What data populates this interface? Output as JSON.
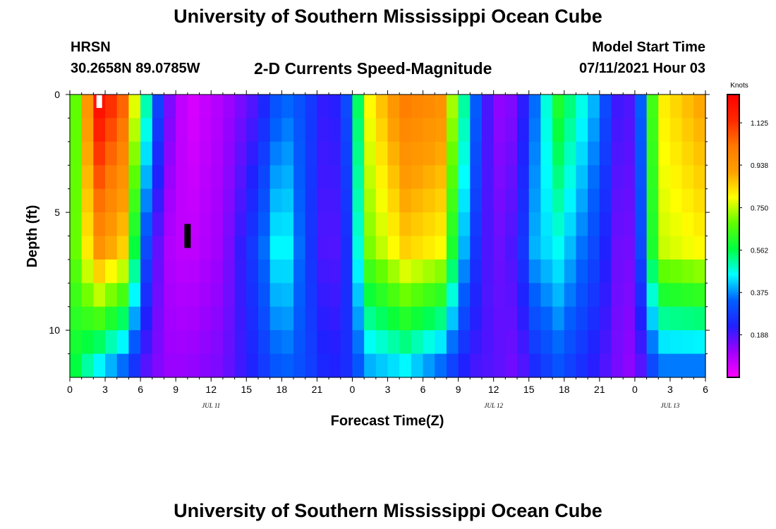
{
  "page": {
    "top_title": "University of Southern Mississippi Ocean Cube",
    "bottom_title": "University of Southern Mississippi Ocean Cube",
    "station": "HRSN",
    "coords": "30.2658N  89.0785W",
    "subtitle": "2-D Currents Speed-Magnitude",
    "model_label": "Model Start Time",
    "model_time": "07/11/2021 Hour 03"
  },
  "colors": {
    "scale": [
      "#ff00ff",
      "#a000ff",
      "#2020ff",
      "#0060ff",
      "#00ffff",
      "#00ff40",
      "#60ff00",
      "#ffff00",
      "#ffa000",
      "#ff7800",
      "#ff2800",
      "#ff0000"
    ],
    "frame": "#000000"
  },
  "chart_data": {
    "type": "heatmap",
    "title": "2-D Currents Speed-Magnitude",
    "xlabel": "Forecast Time(Z)",
    "ylabel": "Depth (ft)",
    "x_ticks": [
      "0",
      "3",
      "6",
      "9",
      "12",
      "15",
      "18",
      "21",
      "0",
      "3",
      "6",
      "9",
      "12",
      "15",
      "18",
      "21",
      "0",
      "3",
      "6"
    ],
    "y_ticks": [
      "0",
      "5",
      "10"
    ],
    "y_range": [
      0,
      12
    ],
    "day_labels": [
      {
        "label": "JUL 11",
        "hour": 12
      },
      {
        "label": "JUL 12",
        "hour": 36
      },
      {
        "label": "JUL 13",
        "hour": 51
      }
    ],
    "colorbar": {
      "unit": "Knots",
      "range": [
        0,
        1.25
      ],
      "ticks": [
        "1.125",
        "0.938",
        "0.750",
        "0.562",
        "0.375",
        "0.188"
      ]
    },
    "time_hours": 54,
    "depth_layers": 12,
    "anchor_hours": [
      0,
      2.5,
      4.5,
      6.5,
      8,
      10,
      13,
      16,
      18,
      20,
      22,
      23.5,
      25.5,
      28.5,
      31.5,
      34,
      36,
      38,
      39.5,
      41.5,
      44.5,
      46.5,
      48,
      50,
      53.5,
      54
    ],
    "anchor_depths_ft": [
      0.5,
      6.5,
      11.5
    ],
    "speed_knots": [
      [
        0.55,
        0.62,
        0.6
      ],
      [
        1.2,
        0.95,
        0.45
      ],
      [
        1.05,
        0.85,
        0.35
      ],
      [
        0.5,
        0.3,
        0.18
      ],
      [
        0.18,
        0.1,
        0.12
      ],
      [
        0.04,
        0.07,
        0.12
      ],
      [
        0.1,
        0.12,
        0.15
      ],
      [
        0.2,
        0.3,
        0.25
      ],
      [
        0.36,
        0.5,
        0.35
      ],
      [
        0.3,
        0.3,
        0.3
      ],
      [
        0.18,
        0.15,
        0.22
      ],
      [
        0.3,
        0.25,
        0.25
      ],
      [
        0.8,
        0.7,
        0.4
      ],
      [
        1.0,
        0.85,
        0.45
      ],
      [
        0.95,
        0.8,
        0.35
      ],
      [
        0.4,
        0.3,
        0.2
      ],
      [
        0.12,
        0.15,
        0.18
      ],
      [
        0.15,
        0.2,
        0.15
      ],
      [
        0.35,
        0.4,
        0.25
      ],
      [
        0.6,
        0.46,
        0.32
      ],
      [
        0.4,
        0.3,
        0.22
      ],
      [
        0.2,
        0.16,
        0.15
      ],
      [
        0.18,
        0.15,
        0.12
      ],
      [
        0.8,
        0.75,
        0.36
      ],
      [
        0.9,
        0.8,
        0.36
      ],
      [
        0.7,
        0.6,
        0.35
      ]
    ],
    "markers": [
      {
        "color": "#ffffff",
        "hour": 2.5,
        "depth_ft": 0.3
      },
      {
        "color": "#000000",
        "hour": 10,
        "depth_ft": 6
      }
    ]
  }
}
